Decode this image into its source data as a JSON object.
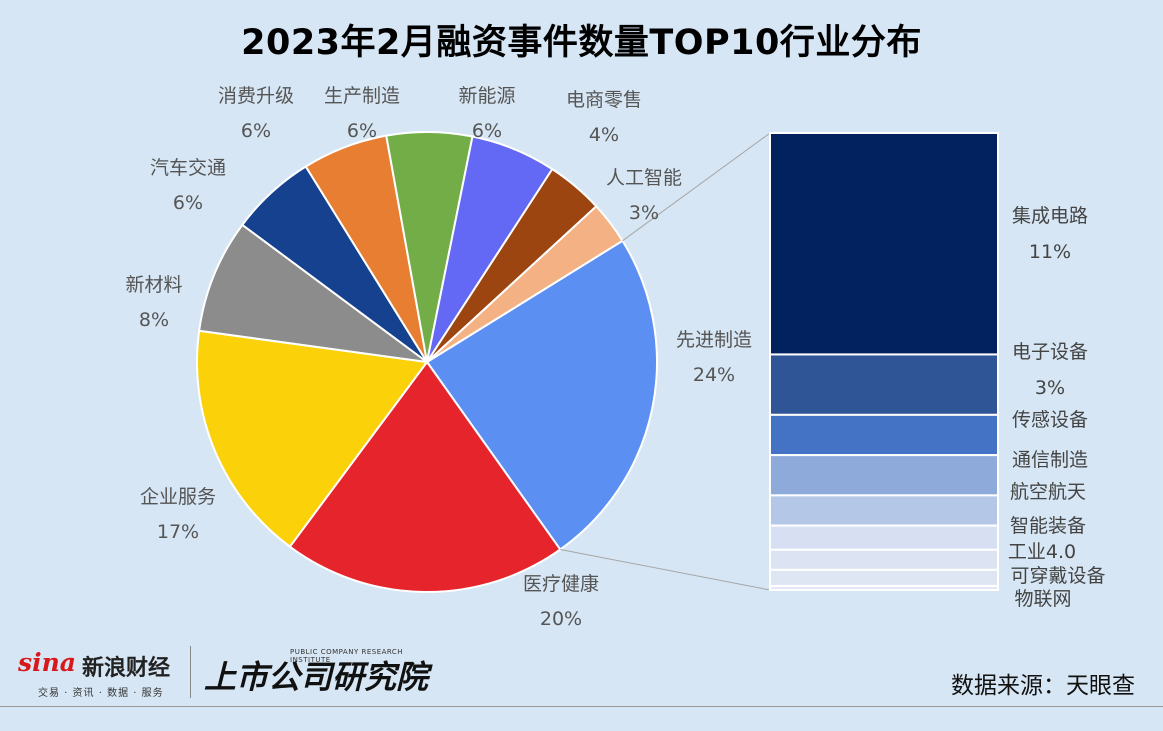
{
  "chart_data": {
    "type": "pie",
    "title": "2023年2月融资事件数量TOP10行业分布",
    "slices": [
      {
        "label": "先进制造",
        "value": 24,
        "pct_text": "24%",
        "color": "#5b8ff2"
      },
      {
        "label": "医疗健康",
        "value": 20,
        "pct_text": "20%",
        "color": "#e5242b"
      },
      {
        "label": "企业服务",
        "value": 17,
        "pct_text": "17%",
        "color": "#fbd10a"
      },
      {
        "label": "新材料",
        "value": 8,
        "pct_text": "8%",
        "color": "#8c8c8c"
      },
      {
        "label": "汽车交通",
        "value": 6,
        "pct_text": "6%",
        "color": "#15418e"
      },
      {
        "label": "消费升级",
        "value": 6,
        "pct_text": "6%",
        "color": "#e77e32"
      },
      {
        "label": "生产制造",
        "value": 6,
        "pct_text": "6%",
        "color": "#72ad47"
      },
      {
        "label": "新能源",
        "value": 6,
        "pct_text": "6%",
        "color": "#6368f5"
      },
      {
        "label": "电商零售",
        "value": 4,
        "pct_text": "4%",
        "color": "#9c4510"
      },
      {
        "label": "人工智能",
        "value": 3,
        "pct_text": "3%",
        "color": "#f4b184"
      }
    ],
    "breakdown_of": "先进制造",
    "breakdown": [
      {
        "label": "集成电路",
        "value": 11,
        "pct_text": "11%",
        "color": "#01215f"
      },
      {
        "label": "电子设备",
        "value": 3,
        "pct_text": "3%",
        "color": "#2f5597"
      },
      {
        "label": "传感设备",
        "value": 2,
        "color": "#4472c4"
      },
      {
        "label": "通信制造",
        "value": 2,
        "color": "#8eaadb"
      },
      {
        "label": "航空航天",
        "value": 1.5,
        "color": "#b4c7e7"
      },
      {
        "label": "智能装备",
        "value": 1.2,
        "color": "#d6e0f2"
      },
      {
        "label": "工业4.0",
        "value": 1,
        "color": "#dce4f3"
      },
      {
        "label": "可穿戴设备",
        "value": 0.8,
        "color": "#dee6f3"
      },
      {
        "label": "物联网",
        "value": 0.2,
        "color": "#e2e9f4"
      }
    ]
  },
  "footer": {
    "sina_logo": "sina",
    "sina_name": "新浪财经",
    "sina_sub": "交易 · 资讯 · 数据 · 服务",
    "institute_name": "上市公司研究院",
    "institute_en": "PUBLIC COMPANY RESEARCH INSTITUTE",
    "source": "数据来源：天眼查"
  }
}
